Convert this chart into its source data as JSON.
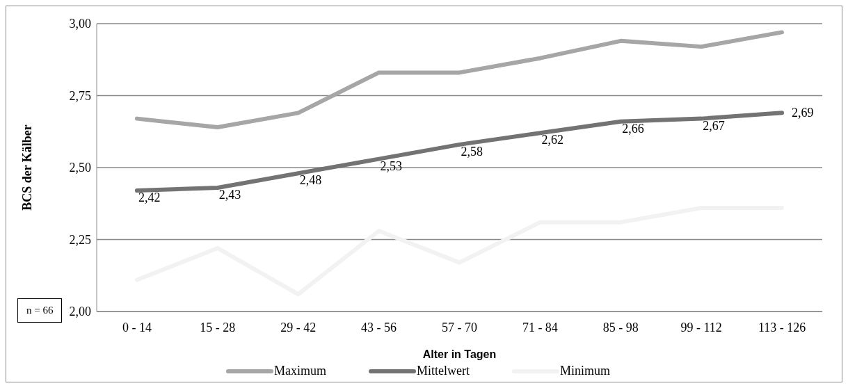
{
  "chart_data": {
    "type": "line",
    "xlabel": "Alter in Tagen",
    "ylabel": "BCS der Kälber",
    "categories": [
      "0 - 14",
      "15 - 28",
      "29 - 42",
      "43 - 56",
      "57 - 70",
      "71 - 84",
      "85 - 98",
      "99 - 112",
      "113 - 126"
    ],
    "series": [
      {
        "name": "Maximum",
        "color": "#a6a6a6",
        "values": [
          2.67,
          2.64,
          2.69,
          2.83,
          2.83,
          2.88,
          2.94,
          2.92,
          2.97
        ]
      },
      {
        "name": "Mittelwert",
        "color": "#737373",
        "values": [
          2.42,
          2.43,
          2.48,
          2.53,
          2.58,
          2.62,
          2.66,
          2.67,
          2.69
        ],
        "value_labels": [
          "2,42",
          "2,43",
          "2,48",
          "2,53",
          "2,58",
          "2,62",
          "2,66",
          "2,67",
          "2,69"
        ]
      },
      {
        "name": "Minimum",
        "color": "#f2f2f2",
        "values": [
          2.11,
          2.22,
          2.06,
          2.28,
          2.17,
          2.31,
          2.31,
          2.36,
          2.36
        ]
      }
    ],
    "ylim": [
      2,
      3
    ],
    "yticks": [
      {
        "value": 2,
        "label": "2,00"
      },
      {
        "value": 2.25,
        "label": "2,25"
      },
      {
        "value": 2.5,
        "label": "2,50"
      },
      {
        "value": 2.75,
        "label": "2,75"
      },
      {
        "value": 3,
        "label": "3,00"
      }
    ],
    "grid": "y",
    "legend": "bottom",
    "marker": "none",
    "line_style": "solid",
    "annotations": [
      "n = 66"
    ]
  }
}
